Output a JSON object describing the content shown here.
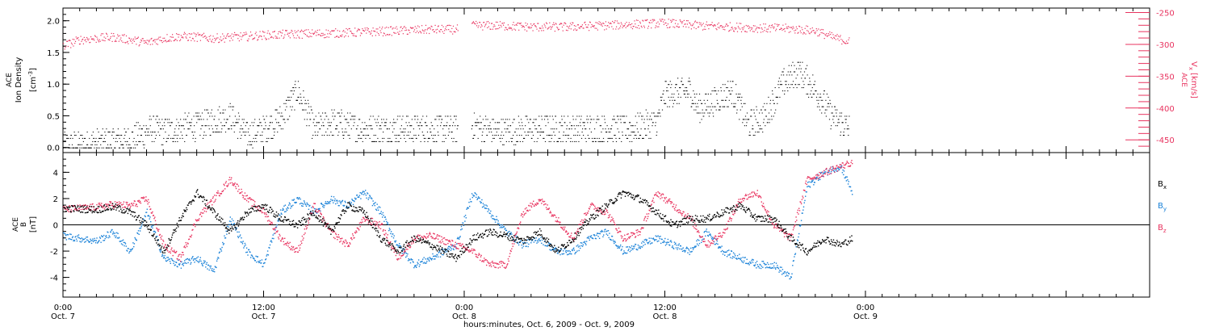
{
  "colors": {
    "black": "#000000",
    "red": "#e8335f",
    "blue": "#1a82d8",
    "axis": "#000000"
  },
  "xaxis": {
    "range_hours": [
      0,
      65
    ],
    "ticks": [
      {
        "h": 0,
        "time": "0:00",
        "date": "Oct. 7"
      },
      {
        "h": 12,
        "time": "12:00",
        "date": "Oct. 7"
      },
      {
        "h": 24,
        "time": "0:00",
        "date": "Oct. 8"
      },
      {
        "h": 36,
        "time": "12:00",
        "date": "Oct. 8"
      },
      {
        "h": 48,
        "time": "0:00",
        "date": "Oct. 9"
      }
    ],
    "title": "hours:minutes, Oct.  6, 2009 - Oct.  9, 2009"
  },
  "panel1": {
    "ylabel_line1": "ACE",
    "ylabel_line2": "Ion Density",
    "ylabel_line3": "[cm",
    "ylabel_sup": "-3",
    "ylabel_close": "]",
    "y2label_sub": "x",
    "y2label_unit": "[km/s]"
  },
  "panel2": {
    "ylabel_line1": "ACE",
    "ylabel_line2": "B",
    "ylabel_line3": "[nT]",
    "legend": [
      {
        "label": "B",
        "sub": "x",
        "color": "black"
      },
      {
        "label": "B",
        "sub": "y",
        "color": "blue"
      },
      {
        "label": "B",
        "sub": "z",
        "color": "red"
      }
    ]
  },
  "chart_data": [
    {
      "type": "scatter",
      "title": "",
      "ylabel": "ACE Ion Density [cm-3]",
      "ylim": [
        -0.08,
        2.2
      ],
      "yticks": [
        0.0,
        0.5,
        1.0,
        1.5,
        2.0
      ],
      "y2label": "ACE Vx [km/s]",
      "y2lim": [
        -470,
        -243
      ],
      "y2ticks": [
        -450,
        -400,
        -350,
        -300,
        -250
      ],
      "series": [
        {
          "name": "ACE Ion Density",
          "axis": "left",
          "color": "black",
          "x_hours": [
            0,
            2,
            4,
            5.3,
            6,
            8,
            10,
            11,
            12,
            13,
            14,
            15,
            16,
            18,
            20,
            22,
            23.5,
            24.5,
            26,
            28,
            30,
            32,
            34,
            35.5,
            36,
            37.5,
            38,
            40,
            41,
            42,
            43,
            44,
            45,
            46,
            47
          ],
          "y": [
            0.03,
            0.08,
            0.12,
            0.3,
            0.25,
            0.35,
            0.5,
            0.2,
            0.3,
            0.45,
            0.9,
            0.3,
            0.4,
            0.3,
            0.3,
            0.3,
            0.3,
            0.35,
            0.25,
            0.3,
            0.3,
            0.3,
            0.3,
            0.4,
            0.85,
            0.9,
            0.6,
            0.9,
            0.35,
            0.5,
            1.0,
            1.2,
            0.9,
            0.5,
            0.3
          ],
          "gaps_hours": [
            [
              23.6,
              24.4
            ]
          ]
        },
        {
          "name": "ACE Vx",
          "axis": "right",
          "color": "red",
          "x_hours": [
            0,
            1,
            2,
            3,
            4,
            5,
            6,
            7,
            8,
            9,
            10,
            11,
            12,
            13,
            14,
            16,
            18,
            20,
            22,
            23.5,
            24.5,
            26,
            28,
            30,
            32,
            34,
            36,
            38,
            40,
            42,
            43,
            44,
            45,
            46,
            47
          ],
          "y": [
            -302,
            -292,
            -290,
            -288,
            -292,
            -297,
            -290,
            -287,
            -288,
            -290,
            -288,
            -287,
            -285,
            -284,
            -283,
            -282,
            -280,
            -278,
            -276,
            -276,
            -270,
            -270,
            -272,
            -272,
            -270,
            -268,
            -266,
            -270,
            -272,
            -274,
            -274,
            -276,
            -278,
            -288,
            -295
          ],
          "gaps_hours": [
            [
              23.6,
              24.4
            ]
          ]
        }
      ]
    },
    {
      "type": "scatter",
      "title": "",
      "ylabel": "ACE B [nT]",
      "ylim": [
        -5.5,
        5.5
      ],
      "yticks": [
        -4,
        -2,
        0,
        2,
        4
      ],
      "series": [
        {
          "name": "Bx",
          "color": "black",
          "x_hours": [
            0,
            2,
            3,
            4,
            5,
            6,
            7,
            8,
            9,
            10,
            11,
            12,
            13,
            14,
            15,
            16,
            17,
            18,
            19,
            20,
            21,
            22,
            23.5,
            24.5,
            25.5,
            26.5,
            27.5,
            28.5,
            29.5,
            30.5,
            31.5,
            32.5,
            33.5,
            34.5,
            35.5,
            36.5,
            37.5,
            38.5,
            39.5,
            40.5,
            41.5,
            42.5,
            43.5,
            44.5,
            45.5,
            46.5,
            47.2
          ],
          "y": [
            1.3,
            1.2,
            1.4,
            1.0,
            0.0,
            -2.0,
            0.5,
            2.5,
            1.0,
            -0.5,
            1.0,
            1.5,
            0.5,
            0.0,
            1.0,
            -0.5,
            1.5,
            1.0,
            -1.0,
            -2.0,
            -1.0,
            -1.5,
            -2.5,
            -1.0,
            -0.5,
            -0.8,
            -1.2,
            -0.5,
            -2.0,
            -1.0,
            0.5,
            1.5,
            2.5,
            2.0,
            1.0,
            0.0,
            0.5,
            0.5,
            1.0,
            1.5,
            0.5,
            0.5,
            -1.0,
            -2.0,
            -1.0,
            -1.5,
            -1.0
          ]
        },
        {
          "name": "By",
          "color": "blue",
          "x_hours": [
            0,
            1,
            2,
            3,
            4,
            5,
            6,
            7,
            8,
            9,
            10,
            11,
            12,
            13,
            14,
            15,
            16,
            17,
            18,
            19,
            20,
            21,
            22,
            23.5,
            24.5,
            25.5,
            26.5,
            27.5,
            28.5,
            29.5,
            30.5,
            31.5,
            32.5,
            33.5,
            34.5,
            35.5,
            36.5,
            37.5,
            38.5,
            39.5,
            40.5,
            41.5,
            42.5,
            43.5,
            44.5,
            45.5,
            46.5,
            47.2
          ],
          "y": [
            -0.8,
            -1.0,
            -1.2,
            -0.5,
            -2.0,
            1.0,
            -2.5,
            -3.0,
            -2.5,
            -3.5,
            0.5,
            -2.0,
            -3.0,
            1.0,
            2.0,
            1.0,
            2.0,
            1.5,
            2.5,
            1.0,
            -1.5,
            -3.0,
            -2.5,
            -1.5,
            2.5,
            1.0,
            -0.5,
            -1.5,
            -1.0,
            -2.0,
            -2.0,
            -1.0,
            -0.5,
            -2.0,
            -1.5,
            -1.0,
            -1.5,
            -2.0,
            -0.5,
            -2.0,
            -2.5,
            -3.0,
            -3.0,
            -4.0,
            3.0,
            4.0,
            4.5,
            2.5
          ]
        },
        {
          "name": "Bz",
          "color": "red",
          "x_hours": [
            0,
            1,
            2,
            3,
            4,
            5,
            6,
            7,
            8,
            9,
            10,
            11,
            12,
            13,
            14,
            15,
            16,
            17,
            18,
            19,
            20,
            21,
            22,
            23.5,
            24.5,
            25.5,
            26.5,
            27.5,
            28.5,
            29.5,
            30.5,
            31.5,
            32.5,
            33.5,
            34.5,
            35.5,
            36.5,
            37.5,
            38.5,
            39.5,
            40.5,
            41.5,
            42.5,
            43.5,
            44.5,
            45.5,
            46.5,
            47.2
          ],
          "y": [
            1.2,
            1.3,
            1.4,
            1.6,
            1.5,
            2.0,
            -1.5,
            -2.5,
            0.5,
            2.0,
            3.5,
            2.0,
            1.0,
            -1.0,
            -2.0,
            1.5,
            -0.5,
            -1.5,
            0.5,
            0.0,
            -2.5,
            -1.0,
            -0.8,
            -1.5,
            -2.0,
            -3.0,
            -3.0,
            1.0,
            2.0,
            0.5,
            -1.0,
            1.5,
            1.0,
            -1.0,
            -0.5,
            2.5,
            1.5,
            0.5,
            -1.5,
            -0.5,
            2.0,
            2.5,
            0.0,
            -1.0,
            3.5,
            4.0,
            4.5,
            4.8
          ]
        }
      ]
    }
  ]
}
